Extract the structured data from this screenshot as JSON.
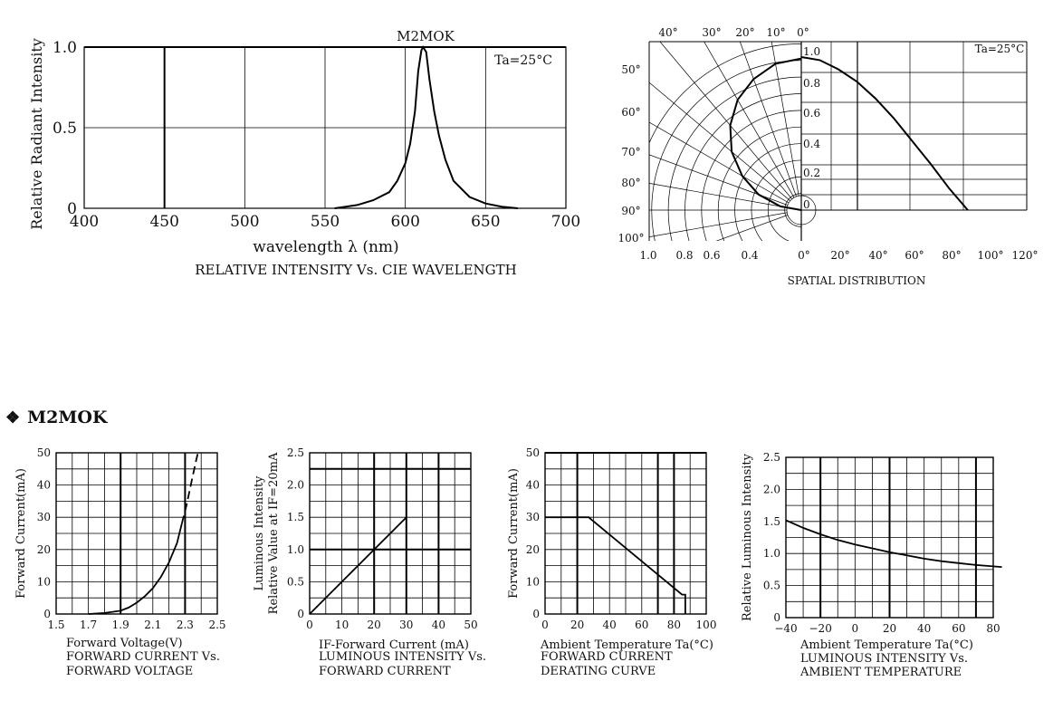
{
  "section": {
    "bullet": "❖",
    "title": "M2MOK"
  },
  "chart_data": [
    {
      "id": "spectrum",
      "type": "line",
      "annotation": "M2MOK",
      "condition": "Ta=25°C",
      "xlabel": "wavelength λ (nm)",
      "ylabel": "Relative Radiant Intensity",
      "caption": [
        "RELATIVE INTENSITY Vs. CIE WAVELENGTH"
      ],
      "xlim": [
        400,
        700
      ],
      "ylim": [
        0,
        1.0
      ],
      "xticks": [
        "400",
        "450",
        "500",
        "550",
        "600",
        "650",
        "700"
      ],
      "yticks": [
        "0",
        "0.5",
        "1.0"
      ],
      "series": [
        {
          "points": [
            [
              556,
              0
            ],
            [
              570,
              0.02
            ],
            [
              580,
              0.05
            ],
            [
              590,
              0.1
            ],
            [
              595,
              0.17
            ],
            [
              600,
              0.28
            ],
            [
              603,
              0.4
            ],
            [
              606,
              0.6
            ],
            [
              608,
              0.85
            ],
            [
              610,
              0.98
            ],
            [
              611,
              1.0
            ],
            [
              613,
              0.97
            ],
            [
              615,
              0.8
            ],
            [
              618,
              0.6
            ],
            [
              621,
              0.45
            ],
            [
              625,
              0.3
            ],
            [
              630,
              0.17
            ],
            [
              640,
              0.07
            ],
            [
              650,
              0.03
            ],
            [
              660,
              0.01
            ],
            [
              670,
              0
            ]
          ]
        }
      ]
    },
    {
      "id": "spatial",
      "type": "line",
      "condition": "Ta=25°C",
      "caption": [
        "SPATIAL DISTRIBUTION"
      ],
      "angle_labels": [
        "40°",
        "30°",
        "20°",
        "10°",
        "0°",
        "50°",
        "60°",
        "70°",
        "80°",
        "90°",
        "100°"
      ],
      "radius_labels": [
        "1.0",
        "0.8",
        "0.6",
        "0.4"
      ],
      "inner_labels": [
        "1.0",
        "0.8",
        "0.6",
        "0.4",
        "0.2",
        "0"
      ],
      "bottom_labels": [
        "0°",
        "20°",
        "40°",
        "60°",
        "80°",
        "100°",
        "120°"
      ],
      "series": [
        {
          "points": [
            [
              0,
              1.0
            ],
            [
              10,
              0.98
            ],
            [
              20,
              0.92
            ],
            [
              30,
              0.84
            ],
            [
              40,
              0.73
            ],
            [
              50,
              0.6
            ],
            [
              60,
              0.45
            ],
            [
              70,
              0.3
            ],
            [
              80,
              0.14
            ],
            [
              90,
              0
            ]
          ]
        }
      ]
    },
    {
      "id": "iv",
      "type": "line",
      "xlabel": "Forward Voltage(V)",
      "ylabel": "Forward Current(mA)",
      "caption": [
        "FORWARD CURRENT Vs.",
        "FORWARD VOLTAGE"
      ],
      "xlim": [
        1.5,
        2.5
      ],
      "ylim": [
        0,
        50
      ],
      "xticks": [
        "1.5",
        "1.7",
        "1.9",
        "2.1",
        "2.3",
        "2.5"
      ],
      "yticks": [
        "0",
        "10",
        "20",
        "30",
        "40",
        "50"
      ],
      "series": [
        {
          "points": [
            [
              1.7,
              0
            ],
            [
              1.8,
              0.3
            ],
            [
              1.9,
              1
            ],
            [
              1.95,
              2
            ],
            [
              2.0,
              3.5
            ],
            [
              2.05,
              5.5
            ],
            [
              2.1,
              8
            ],
            [
              2.15,
              11.5
            ],
            [
              2.2,
              16
            ],
            [
              2.25,
              22
            ],
            [
              2.28,
              28
            ]
          ]
        },
        {
          "dashed": true,
          "points": [
            [
              2.28,
              28
            ],
            [
              2.31,
              34
            ],
            [
              2.34,
              41
            ],
            [
              2.37,
              48
            ],
            [
              2.385,
              51
            ]
          ]
        }
      ]
    },
    {
      "id": "lum_vs_if",
      "type": "line",
      "xlabel": "IF-Forward Current (mA)",
      "ylabel": [
        "Luminous Intensity",
        "Relative Value at IF=20mA"
      ],
      "caption": [
        "LUMINOUS INTENSITY Vs.",
        "FORWARD CURRENT"
      ],
      "xlim": [
        0,
        50
      ],
      "ylim": [
        0,
        2.5
      ],
      "xticks": [
        "0",
        "10",
        "20",
        "30",
        "40",
        "50"
      ],
      "yticks": [
        "0",
        "0.5",
        "1.0",
        "1.5",
        "2.0",
        "2.5"
      ],
      "series": [
        {
          "points": [
            [
              0,
              0
            ],
            [
              30,
              1.5
            ]
          ]
        }
      ]
    },
    {
      "id": "derating",
      "type": "line",
      "xlabel": "Ambient Temperature Ta(°C)",
      "ylabel": "Forward Current(mA)",
      "caption": [
        "FORWARD CURRENT",
        "DERATING CURVE"
      ],
      "xlim": [
        0,
        100
      ],
      "ylim": [
        0,
        50
      ],
      "xticks": [
        "0",
        "20",
        "40",
        "60",
        "80",
        "100"
      ],
      "yticks": [
        "0",
        "10",
        "20",
        "30",
        "40",
        "50"
      ],
      "series": [
        {
          "points": [
            [
              0,
              30
            ],
            [
              27,
              30
            ],
            [
              85,
              6
            ],
            [
              87,
              6
            ],
            [
              87,
              0
            ]
          ]
        }
      ]
    },
    {
      "id": "lum_vs_temp",
      "type": "line",
      "xlabel": "Ambient Temperature Ta(°C)",
      "ylabel": "Relative Luminous Intensity",
      "caption": [
        "LUMINOUS INTENSITY Vs.",
        "AMBIENT TEMPERATURE"
      ],
      "xlim": [
        -40,
        80
      ],
      "ylim": [
        0,
        2.5
      ],
      "xticks": [
        "-40",
        "-20",
        "0",
        "20",
        "40",
        "60",
        "80"
      ],
      "yticks": [
        "0",
        "0.5",
        "1.0",
        "1.5",
        "2.0",
        "2.5"
      ],
      "series": [
        {
          "points": [
            [
              -40,
              1.52
            ],
            [
              -30,
              1.4
            ],
            [
              -20,
              1.3
            ],
            [
              -10,
              1.21
            ],
            [
              0,
              1.14
            ],
            [
              10,
              1.08
            ],
            [
              20,
              1.02
            ],
            [
              30,
              0.97
            ],
            [
              40,
              0.92
            ],
            [
              50,
              0.88
            ],
            [
              60,
              0.85
            ],
            [
              70,
              0.82
            ],
            [
              80,
              0.8
            ],
            [
              85,
              0.79
            ]
          ]
        }
      ]
    }
  ]
}
